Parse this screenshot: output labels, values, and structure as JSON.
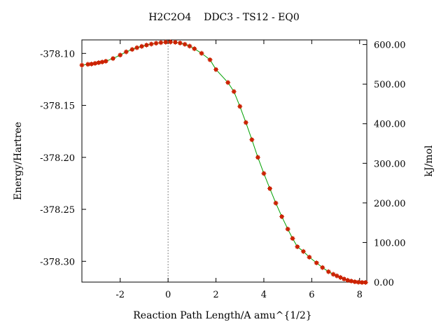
{
  "chart_data": {
    "type": "scatter",
    "title": "H2C2O4    DDC3 - TS12 - EQ0",
    "xlabel": "Reaction Path Length/A amu^{1/2}",
    "ylabel": "Energy/Hartree",
    "y2label": "kJ/mol",
    "xlim": [
      -3.6,
      8.3
    ],
    "ylim": [
      -378.32,
      -378.087
    ],
    "y2lim": [
      0.0,
      611.7
    ],
    "x_ticks": [
      -2,
      0,
      2,
      4,
      6,
      8
    ],
    "x_tick_labels": [
      "-2",
      "0",
      "2",
      "4",
      "6",
      "8"
    ],
    "y_ticks": [
      -378.1,
      -378.15,
      -378.2,
      -378.25,
      -378.3
    ],
    "y_tick_labels": [
      "-378.10",
      "-378.15",
      "-378.20",
      "-378.25",
      "-378.30"
    ],
    "y2_ticks": [
      0,
      100,
      200,
      300,
      400,
      500,
      600
    ],
    "y2_tick_labels": [
      "0.00",
      "100.00",
      "200.00",
      "300.00",
      "400.00",
      "500.00",
      "600.00"
    ],
    "ts_marker_x": 0,
    "colors": {
      "line": "#00a000",
      "marker": "#cc2200",
      "vline": "#888888"
    },
    "series": [
      {
        "x": [
          -3.6,
          -3.35,
          -3.2,
          -3.05,
          -2.9,
          -2.75,
          -2.6,
          -2.3,
          -2.0,
          -1.75,
          -1.5,
          -1.3,
          -1.1,
          -0.9,
          -0.7,
          -0.5,
          -0.3,
          -0.1,
          0.1,
          0.3,
          0.5,
          0.7,
          0.9,
          1.1,
          1.4,
          1.75,
          2.0,
          2.5,
          2.75,
          3.0,
          3.25,
          3.5,
          3.75,
          4.0,
          4.25,
          4.5,
          4.75,
          5.0,
          5.2,
          5.4,
          5.65,
          5.9,
          6.2,
          6.45,
          6.7,
          6.9,
          7.05,
          7.2,
          7.35,
          7.5,
          7.65,
          7.8,
          7.95,
          8.1,
          8.25
        ],
        "y": [
          -378.1113,
          -378.1105,
          -378.1102,
          -378.1096,
          -378.1089,
          -378.1083,
          -378.1075,
          -378.1049,
          -378.1016,
          -378.0985,
          -378.0962,
          -378.0945,
          -378.0932,
          -378.092,
          -378.091,
          -378.0902,
          -378.0896,
          -378.0892,
          -378.089,
          -378.0893,
          -378.09,
          -378.0912,
          -378.093,
          -378.0955,
          -378.0999,
          -378.1061,
          -378.1155,
          -378.128,
          -378.1367,
          -378.151,
          -378.1665,
          -378.183,
          -378.2,
          -378.2155,
          -378.23,
          -378.244,
          -378.257,
          -378.269,
          -378.278,
          -378.286,
          -378.2905,
          -378.296,
          -378.3015,
          -378.306,
          -378.31,
          -378.3125,
          -378.314,
          -378.3155,
          -378.317,
          -378.3182,
          -378.319,
          -378.3197,
          -378.3201,
          -378.3203,
          -378.3203
        ]
      }
    ]
  }
}
